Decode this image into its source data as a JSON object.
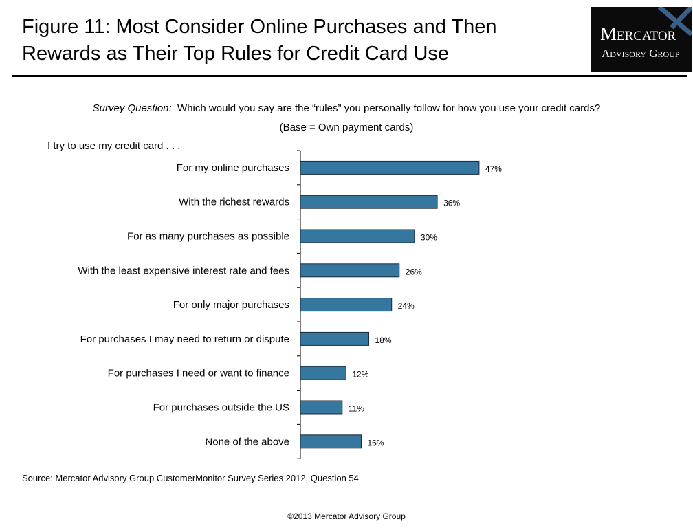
{
  "slide": {
    "title_line1": "Figure 11: Most Consider Online Purchases and Then",
    "title_line2": "Rewards as Their Top Rules for Credit Card Use",
    "logo_line1": "Mercator",
    "logo_line2": "Advisory Group",
    "question_lead": "Survey Question:",
    "question_text": "Which would you say are the “rules” you personally follow for how you use your credit cards?",
    "base": "(Base = Own payment cards)",
    "source": "Source: Mercator Advisory Group CustomerMonitor Survey Series 2012, Question 54",
    "copyright": "©2013 Mercator Advisory Group"
  },
  "chart_data": {
    "type": "bar",
    "orientation": "horizontal",
    "title": "",
    "category_header": "I try to use my credit card . . .",
    "categories": [
      "For my online purchases",
      "With the richest rewards",
      "For as many purchases as possible",
      "With the least expensive interest rate and fees",
      "For only major purchases",
      "For purchases I may need to return or dispute",
      "For purchases I need or want to finance",
      "For purchases outside the US",
      "None of the above"
    ],
    "values": [
      47,
      36,
      30,
      26,
      24,
      18,
      12,
      11,
      16
    ],
    "value_labels": [
      "47%",
      "36%",
      "30%",
      "26%",
      "24%",
      "18%",
      "12%",
      "11%",
      "16%"
    ],
    "unit": "%",
    "xlim": [
      0,
      100
    ],
    "grid": false,
    "legend": "none",
    "bar_color": "#35779e",
    "bar_edge_color": "#1a2a3a"
  }
}
